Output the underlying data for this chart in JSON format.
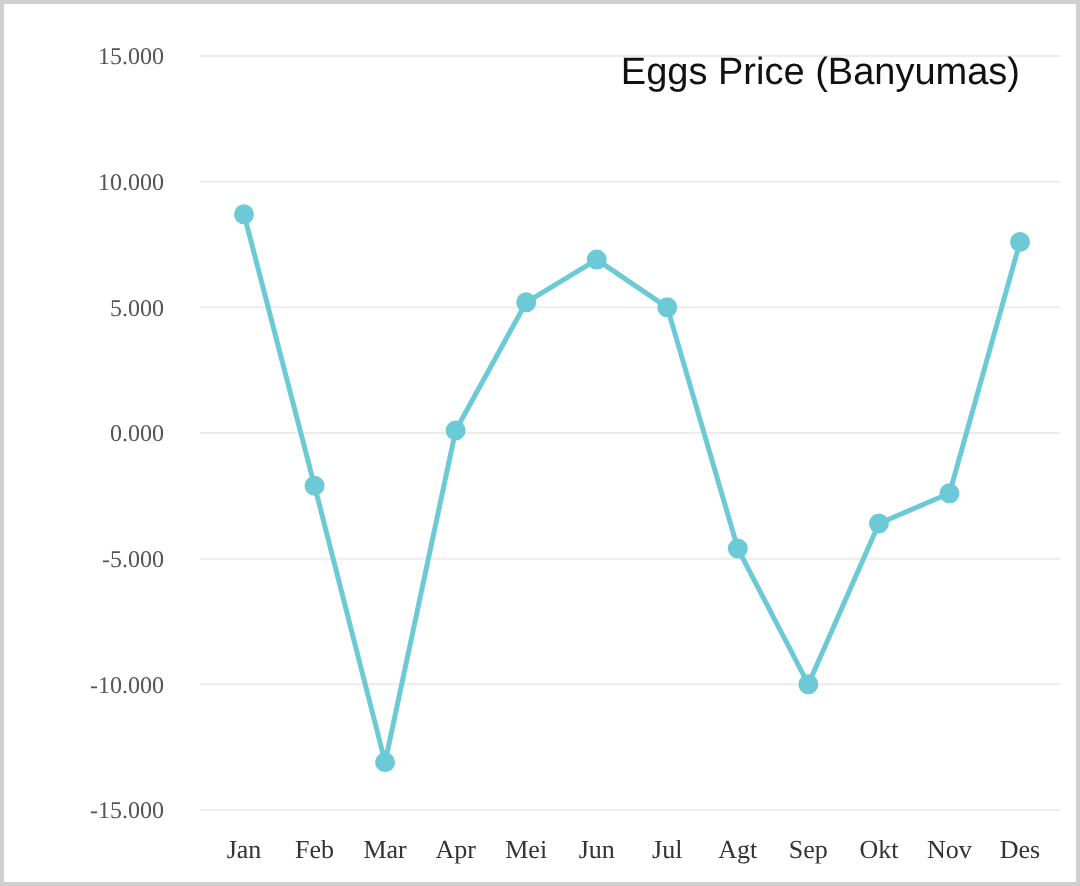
{
  "chart_data": {
    "type": "line",
    "title": "Eggs Price (Banyumas)",
    "categories": [
      "Jan",
      "Feb",
      "Mar",
      "Apr",
      "Mei",
      "Jun",
      "Jul",
      "Agt",
      "Sep",
      "Okt",
      "Nov",
      "Des"
    ],
    "series": [
      {
        "color": "#6cc9d6",
        "values": [
          8.7,
          -2.1,
          -13.1,
          0.1,
          5.2,
          6.9,
          5.0,
          -4.6,
          -10.0,
          -3.6,
          -2.4,
          7.6
        ]
      }
    ],
    "ylim": [
      -15,
      15
    ],
    "yticks": [
      {
        "value": -15,
        "label": "-15.000"
      },
      {
        "value": -10,
        "label": "-10.000"
      },
      {
        "value": -5,
        "label": "-5.000"
      },
      {
        "value": 0,
        "label": "0.000"
      },
      {
        "value": 5,
        "label": "5.000"
      },
      {
        "value": 10,
        "label": "10.000"
      },
      {
        "value": 15,
        "label": "15.000"
      }
    ],
    "grid": "y",
    "marker": "circle",
    "line_style": "solid"
  }
}
